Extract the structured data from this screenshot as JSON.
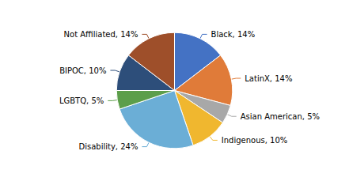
{
  "chart_data": {
    "type": "pie",
    "categories": [
      "Black",
      "LatinX",
      "Asian American",
      "Indigenous",
      "Disability",
      "LGBTQ",
      "BIPOC",
      "Not Affiliated"
    ],
    "values": [
      14,
      14,
      5,
      10,
      24,
      5,
      10,
      14
    ],
    "value_labels": [
      "Black, 14%",
      "LatinX, 14%",
      "Asian American, 5%",
      "Indigenous, 10%",
      "Disability, 24%",
      "LGBTQ, 5%",
      "BIPOC, 10%",
      "Not Affiliated, 14%"
    ],
    "colors": [
      "#4472c4",
      "#e07b39",
      "#a8a8a8",
      "#f0b72f",
      "#6baed6",
      "#5c9e4a",
      "#2d4e7a",
      "#9e4f2a"
    ]
  }
}
